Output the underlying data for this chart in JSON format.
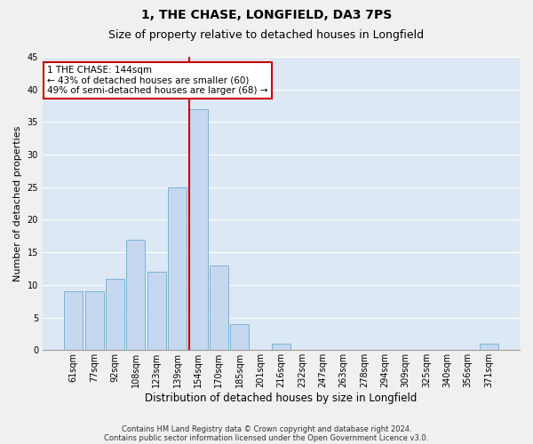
{
  "title": "1, THE CHASE, LONGFIELD, DA3 7PS",
  "subtitle": "Size of property relative to detached houses in Longfield",
  "xlabel": "Distribution of detached houses by size in Longfield",
  "ylabel": "Number of detached properties",
  "categories": [
    "61sqm",
    "77sqm",
    "92sqm",
    "108sqm",
    "123sqm",
    "139sqm",
    "154sqm",
    "170sqm",
    "185sqm",
    "201sqm",
    "216sqm",
    "232sqm",
    "247sqm",
    "263sqm",
    "278sqm",
    "294sqm",
    "309sqm",
    "325sqm",
    "340sqm",
    "356sqm",
    "371sqm"
  ],
  "values": [
    9,
    9,
    11,
    17,
    12,
    25,
    37,
    13,
    4,
    0,
    1,
    0,
    0,
    0,
    0,
    0,
    0,
    0,
    0,
    0,
    1
  ],
  "bar_color": "#c5d8f0",
  "bar_edge_color": "#7ab3d4",
  "annotation_title": "1 THE CHASE: 144sqm",
  "annotation_line1": "← 43% of detached houses are smaller (60)",
  "annotation_line2": "49% of semi-detached houses are larger (68) →",
  "annotation_box_color": "#ffffff",
  "annotation_box_edge": "#cc0000",
  "ylim": [
    0,
    45
  ],
  "yticks": [
    0,
    5,
    10,
    15,
    20,
    25,
    30,
    35,
    40,
    45
  ],
  "plot_bg_color": "#dde8f5",
  "grid_color": "#ffffff",
  "fig_bg_color": "#f0f0f0",
  "footer1": "Contains HM Land Registry data © Crown copyright and database right 2024.",
  "footer2": "Contains public sector information licensed under the Open Government Licence v3.0.",
  "red_line_color": "#cc0000",
  "red_line_x": 5.575,
  "title_fontsize": 10,
  "subtitle_fontsize": 9,
  "tick_fontsize": 7,
  "ylabel_fontsize": 8,
  "xlabel_fontsize": 8.5,
  "annotation_fontsize": 7.5,
  "footer_fontsize": 6
}
